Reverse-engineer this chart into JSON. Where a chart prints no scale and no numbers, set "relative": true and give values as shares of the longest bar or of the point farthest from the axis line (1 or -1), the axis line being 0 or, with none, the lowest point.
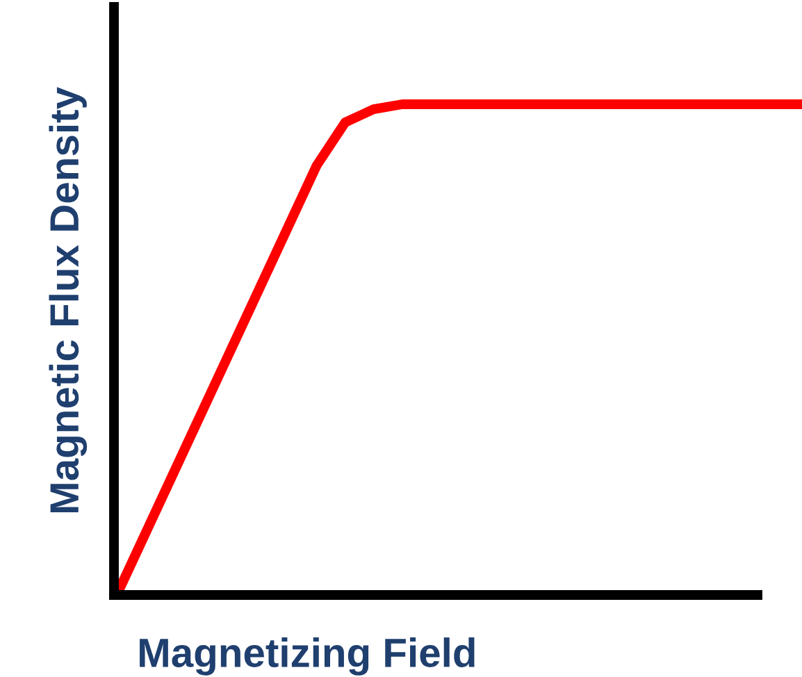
{
  "chart_data": {
    "type": "line",
    "relative": true,
    "xlabel": "Magnetizing Field",
    "ylabel": "Magnetic Flux Density",
    "categories": [
      null,
      null,
      null,
      null,
      null,
      null,
      null,
      null,
      null,
      null,
      null,
      null,
      null,
      null,
      null,
      null,
      null,
      null,
      null,
      null,
      null,
      null,
      null,
      null,
      null
    ],
    "series": [
      {
        "color": "#ff0000",
        "values": [
          0,
          0.125,
          0.25,
          0.375,
          0.5,
          0.625,
          0.75,
          0.875,
          0.963,
          0.99,
          1,
          1,
          1,
          1,
          1,
          1,
          1,
          1,
          1,
          1,
          1,
          1,
          1,
          1,
          1
        ]
      }
    ],
    "marker": "none",
    "line_style": "solid",
    "legend": false,
    "tick_labels": false
  }
}
